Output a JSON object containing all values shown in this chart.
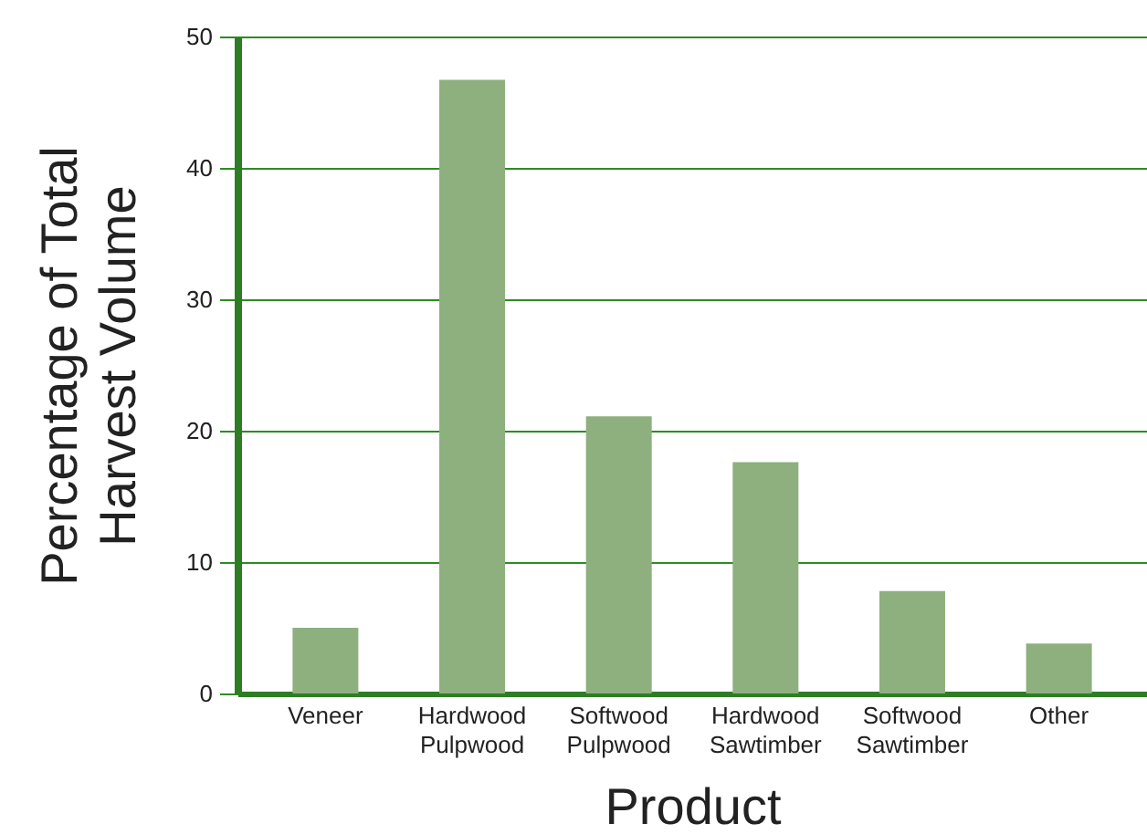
{
  "chart_data": {
    "type": "bar",
    "xlabel": "Product",
    "ylabel": "Percentage of Total Harvest Volume",
    "categories": [
      "Veneer",
      "Hardwood Pulpwood",
      "Softwood Pulpwood",
      "Hardwood Sawtimber",
      "Softwood Sawtimber",
      "Other"
    ],
    "values": [
      5.0,
      46.7,
      21.1,
      17.6,
      7.8,
      3.8
    ],
    "color": "#8db07e",
    "ylim": [
      0,
      50
    ],
    "yticks": [
      0,
      10,
      20,
      30,
      40,
      50
    ],
    "grid": "y"
  }
}
